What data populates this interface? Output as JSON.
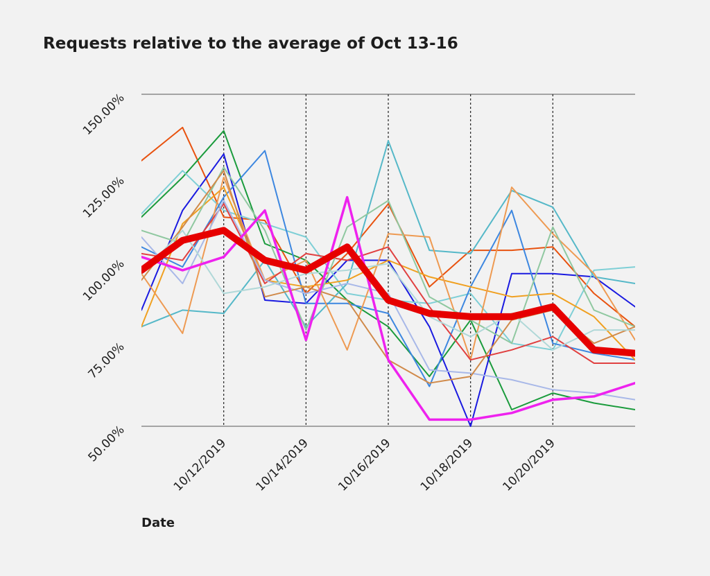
{
  "chart_data": {
    "type": "line",
    "title": "Requests relative to the average of Oct 13-16",
    "xlabel": "Date",
    "ylabel": "",
    "y_ticks": [
      "50.00%",
      "75.00%",
      "100.00%",
      "125.00%",
      "150.00%"
    ],
    "x_ticks": [
      "10/12/2019",
      "10/14/2019",
      "10/16/2019",
      "10/18/2019",
      "10/20/2019"
    ],
    "ylim": [
      50,
      150
    ],
    "xlim": [
      "10/10/2019",
      "10/22/2019"
    ],
    "x": [
      "10/10/2019",
      "10/11/2019",
      "10/12/2019",
      "10/13/2019",
      "10/14/2019",
      "10/15/2019",
      "10/16/2019",
      "10/17/2019",
      "10/18/2019",
      "10/19/2019",
      "10/20/2019",
      "10/21/2019",
      "10/22/2019"
    ],
    "grid": "horizontal lines at 50% and 150%; dotted vertical lines at each labeled date",
    "series": [
      {
        "color": "#e8520f",
        "width": 2,
        "values": [
          130,
          140,
          113,
          112,
          90,
          102,
          117,
          92,
          103,
          103,
          104,
          90,
          80
        ]
      },
      {
        "color": "#1a9b3c",
        "width": 2,
        "values": [
          113,
          125,
          139,
          105,
          100,
          88,
          80,
          65,
          82,
          55,
          60,
          57,
          55
        ]
      },
      {
        "color": "#1a1ae0",
        "width": 2,
        "values": [
          85,
          115,
          132,
          88,
          87,
          100,
          100,
          80,
          50,
          96,
          96,
          95,
          86
        ]
      },
      {
        "color": "#7ecfd6",
        "width": 2,
        "values": [
          114,
          127,
          115,
          111,
          107,
          90,
          88,
          87,
          90,
          75,
          73,
          97,
          98
        ]
      },
      {
        "color": "#55b8c8",
        "width": 2,
        "values": [
          80,
          85,
          84,
          100,
          80,
          93,
          136,
          103,
          102,
          121,
          116,
          95,
          93
        ]
      },
      {
        "color": "#3d87e0",
        "width": 2,
        "values": [
          104,
          98,
          119,
          133,
          87,
          87,
          84,
          62,
          92,
          115,
          75,
          72,
          70
        ]
      },
      {
        "color": "#f0a020",
        "width": 2,
        "values": [
          80,
          111,
          122,
          94,
          92,
          94,
          100,
          95,
          92,
          89,
          90,
          83,
          70
        ]
      },
      {
        "color": "#ee9a52",
        "width": 2,
        "values": [
          96,
          78,
          125,
          94,
          100,
          73,
          108,
          107,
          70,
          122,
          108,
          96,
          76
        ]
      },
      {
        "color": "#e04040",
        "width": 2,
        "values": [
          102,
          100,
          117,
          93,
          102,
          100,
          104,
          86,
          70,
          73,
          77,
          69,
          69
        ]
      },
      {
        "color": "#8fc8a0",
        "width": 2,
        "values": [
          109,
          105,
          128,
          109,
          79,
          110,
          118,
          89,
          82,
          75,
          110,
          85,
          80
        ]
      },
      {
        "color": "#a8b8e8",
        "width": 2,
        "values": [
          107,
          93,
          118,
          94,
          90,
          93,
          90,
          67,
          66,
          64,
          61,
          60,
          58
        ]
      },
      {
        "color": "#d08a4a",
        "width": 2,
        "values": [
          94,
          110,
          127,
          89,
          92,
          88,
          70,
          63,
          65,
          82,
          85,
          75,
          80
        ]
      },
      {
        "color": "#b0d8d8",
        "width": 2,
        "values": [
          96,
          109,
          90,
          92,
          96,
          97,
          99,
          83,
          77,
          84,
          73,
          79,
          79
        ]
      },
      {
        "color": "#ee22ee",
        "width": 3.5,
        "values": [
          101,
          97,
          101,
          115,
          76,
          119,
          70,
          52,
          52,
          54,
          58,
          59,
          63
        ]
      },
      {
        "color": "#e60000",
        "width": 10,
        "values": [
          97,
          106,
          109,
          100,
          97,
          104,
          88,
          84,
          83,
          83,
          86,
          73,
          72
        ]
      }
    ]
  }
}
